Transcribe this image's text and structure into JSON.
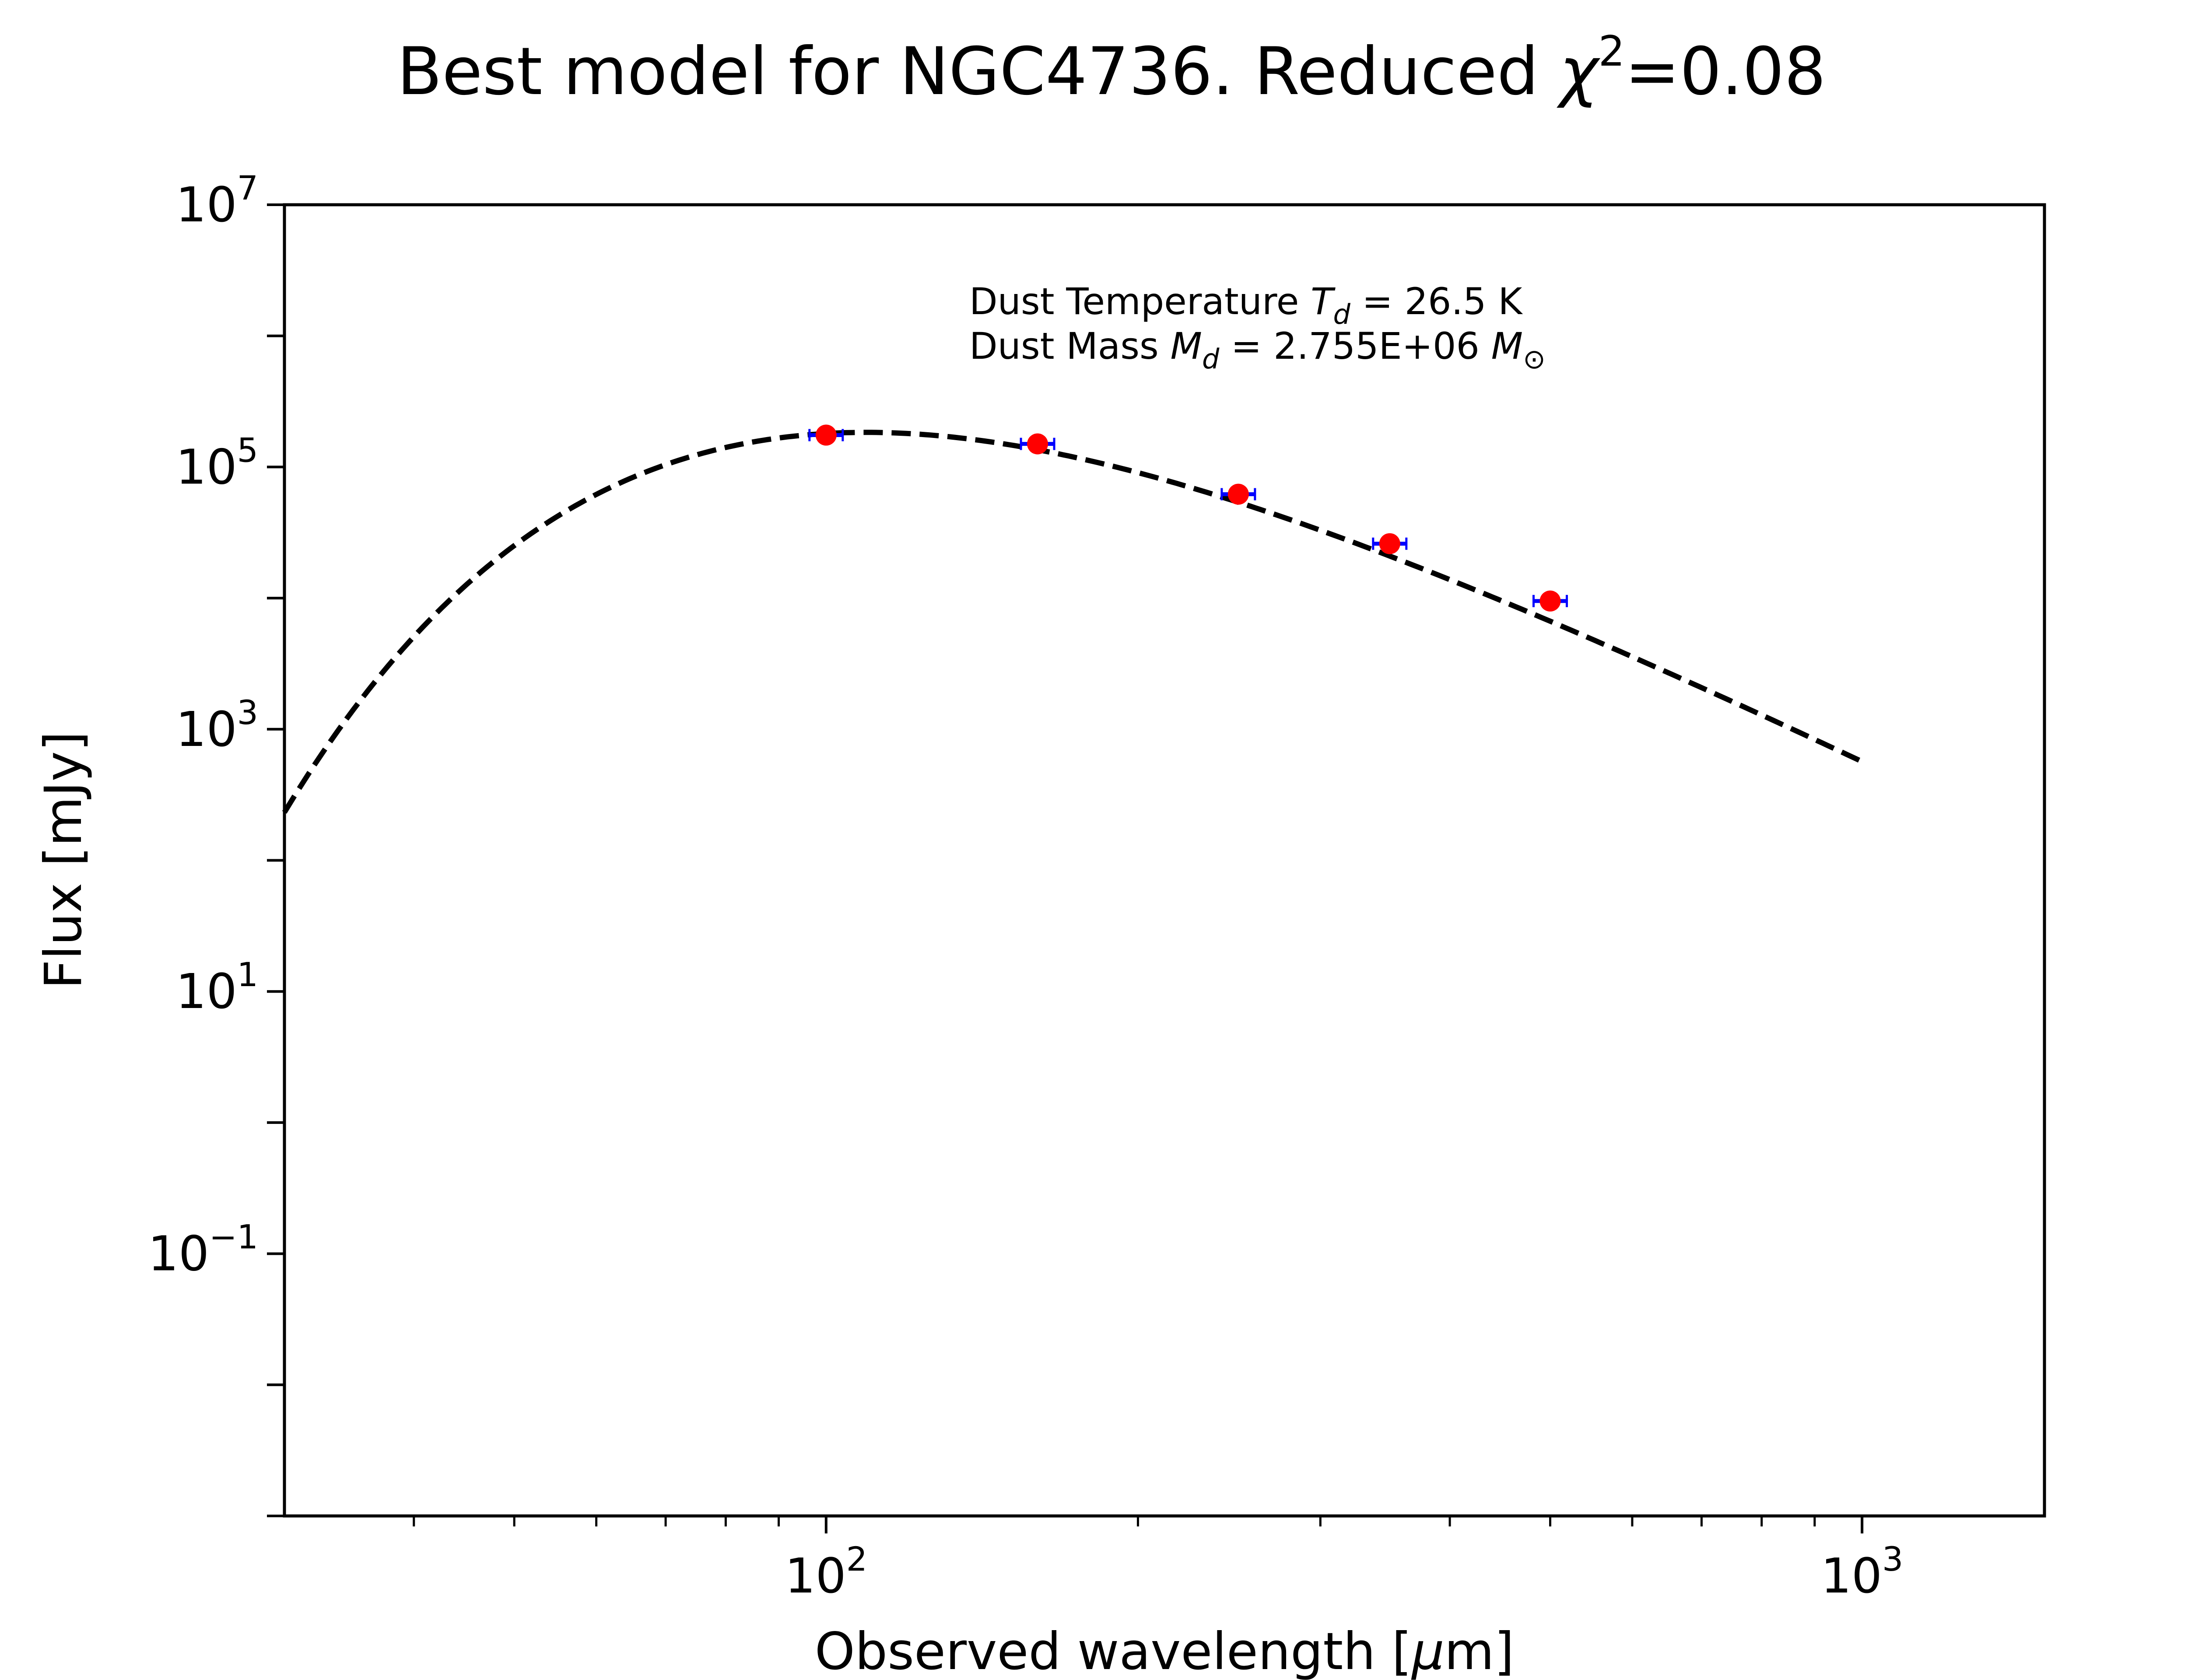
{
  "chart_data": {
    "type": "line",
    "title": {
      "prefix": "Best model for NGC4736. Reduced ",
      "chi": "χ",
      "sup": "2",
      "suffix": "=0.08"
    },
    "xlabel": {
      "prefix": "Observed wavelength [",
      "unit": "μ",
      "suffix": "m]"
    },
    "ylabel": "Flux [mJy]",
    "xscale": "log",
    "yscale": "log",
    "xlim": [
      30,
      1500
    ],
    "ylim": [
      0.001,
      10000000
    ],
    "x_ticks": [
      {
        "value": 100,
        "base": "10",
        "exp": "2"
      },
      {
        "value": 1000,
        "base": "10",
        "exp": "3"
      }
    ],
    "y_ticks": [
      {
        "value": 10000000,
        "base": "10",
        "exp": "7"
      },
      {
        "value": 100000,
        "base": "10",
        "exp": "5"
      },
      {
        "value": 1000,
        "base": "10",
        "exp": "3"
      },
      {
        "value": 10,
        "base": "10",
        "exp": "1"
      },
      {
        "value": 0.1,
        "base": "10",
        "exp": "−1"
      }
    ],
    "annotations": {
      "temperature": {
        "prefix": "Dust Temperature ",
        "sym": "T",
        "sub": "d",
        "suffix": " = 26.5 K"
      },
      "mass": {
        "prefix": "Dust Mass ",
        "sym": "M",
        "sub": "d",
        "middle": " = 2.755E+06 ",
        "unit": "M",
        "unit_sub": "⊙"
      }
    },
    "series": [
      {
        "style": "dashed-black",
        "model": {
          "temperature_K": 26.5,
          "beta": 2.0,
          "norm_flux_mJy": 180000,
          "norm_wavelength_um": 100
        },
        "x_range": [
          30,
          1000
        ]
      },
      {
        "style": "points-red-errorbars-blue",
        "x": [
          100,
          160,
          250,
          350,
          500
        ],
        "y": [
          175000,
          150000,
          62000,
          26000,
          9500
        ]
      }
    ],
    "colors": {
      "model": "#000000",
      "points": "#ff0000",
      "errorbars": "#0000ff"
    },
    "grid": false,
    "legend": "none"
  }
}
